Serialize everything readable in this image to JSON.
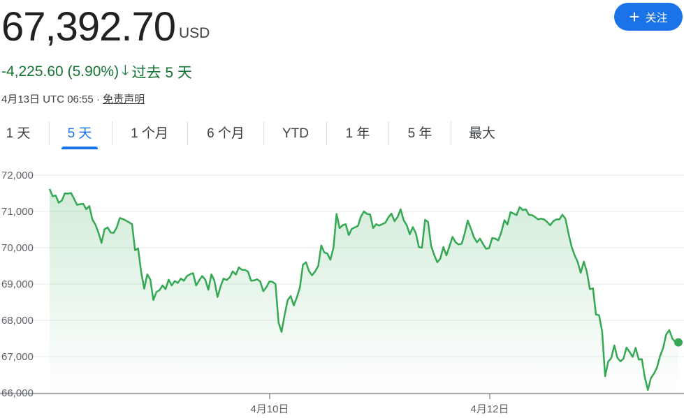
{
  "header": {
    "price": "67,392.70",
    "currency": "USD",
    "follow_label": "关注",
    "follow_icon": "plus-icon",
    "change": "-4,225.60 (5.90%)",
    "change_icon": "arrow-down-icon",
    "change_period": "过去 5 天",
    "change_color": "#137333",
    "timestamp": "4月13日 UTC 06:55",
    "separator": " · ",
    "disclaimer": "免责声明"
  },
  "tabs": [
    {
      "label": "1 天",
      "active": false
    },
    {
      "label": "5 天",
      "active": true
    },
    {
      "label": "1 个月",
      "active": false
    },
    {
      "label": "6 个月",
      "active": false
    },
    {
      "label": "YTD",
      "active": false
    },
    {
      "label": "1 年",
      "active": false
    },
    {
      "label": "5 年",
      "active": false
    },
    {
      "label": "最大",
      "active": false
    }
  ],
  "colors": {
    "accent": "#1a73e8",
    "line": "#34a853",
    "grid": "#e8eaed"
  },
  "chart_data": {
    "type": "area",
    "title": "",
    "xlabel": "",
    "ylabel": "",
    "ylim": [
      66000,
      72000
    ],
    "y_ticks": [
      72000,
      71000,
      70000,
      69000,
      68000,
      67000,
      66000
    ],
    "y_tick_labels": [
      "72,000",
      "71,000",
      "70,000",
      "69,000",
      "68,000",
      "67,000",
      "66,000"
    ],
    "x_ticks": [
      "4月10日",
      "4月12日"
    ],
    "grid": true,
    "series": [
      {
        "values": [
          71620,
          71420,
          71440,
          71240,
          71300,
          71500,
          71490,
          71510,
          71350,
          71180,
          71200,
          71210,
          71060,
          71150,
          70780,
          70640,
          70420,
          70130,
          70510,
          70560,
          70420,
          70410,
          70560,
          70820,
          70790,
          70750,
          70700,
          70650,
          69930,
          69980,
          69330,
          68870,
          69270,
          69120,
          68560,
          68780,
          68830,
          68960,
          68860,
          69120,
          68960,
          69080,
          69030,
          69150,
          69090,
          69220,
          69270,
          69300,
          68960,
          69100,
          69220,
          69120,
          68840,
          69270,
          69090,
          68640,
          68930,
          69150,
          69110,
          69180,
          69350,
          69260,
          69460,
          69390,
          69390,
          69340,
          69090,
          69100,
          69130,
          69070,
          68800,
          68910,
          69070,
          69060,
          69000,
          67940,
          67680,
          68150,
          68560,
          68670,
          68410,
          68630,
          68910,
          69530,
          69600,
          69350,
          69240,
          69350,
          69500,
          70060,
          69870,
          69840,
          69670,
          70000,
          70930,
          70540,
          70620,
          70650,
          70350,
          70520,
          70560,
          70600,
          70860,
          71000,
          70930,
          70920,
          70540,
          70650,
          70610,
          70650,
          70690,
          70840,
          70940,
          70730,
          70850,
          71060,
          70760,
          70620,
          70370,
          70570,
          70390,
          70020,
          70000,
          70770,
          70710,
          70050,
          69800,
          69600,
          69700,
          70020,
          69790,
          70040,
          70300,
          70150,
          70090,
          70110,
          70400,
          70750,
          70530,
          70290,
          70150,
          70250,
          70100,
          69970,
          69990,
          70270,
          70250,
          70200,
          70430,
          70760,
          70640,
          70980,
          70940,
          70900,
          71120,
          71040,
          71060,
          70910,
          70900,
          70850,
          70780,
          70800,
          70780,
          70710,
          70620,
          70730,
          70780,
          70780,
          70910,
          70800,
          70390,
          70030,
          69790,
          69610,
          69310,
          69620,
          69340,
          68860,
          68880,
          68160,
          68140,
          67700,
          66460,
          66860,
          66960,
          67310,
          66970,
          66870,
          66940,
          67250,
          67130,
          66990,
          67240,
          66920,
          66930,
          66430,
          66080,
          66410,
          66530,
          66700,
          67020,
          67240,
          67610,
          67730,
          67500,
          67400,
          67392.7
        ]
      }
    ]
  }
}
